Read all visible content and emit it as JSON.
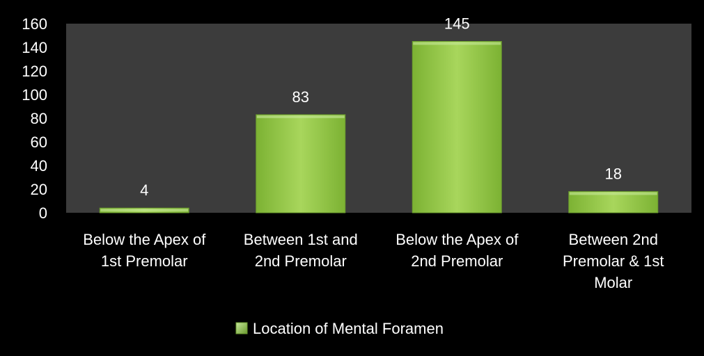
{
  "chart_data": {
    "type": "bar",
    "categories": [
      "Below the Apex of 1st Premolar",
      "Between 1st and 2nd Premolar",
      "Below the Apex of 2nd Premolar",
      "Between 2nd Premolar & 1st Molar"
    ],
    "category_lines": [
      [
        "Below the Apex of",
        "1st Premolar"
      ],
      [
        "Between 1st and",
        "2nd Premolar"
      ],
      [
        "Below the Apex of",
        "2nd Premolar"
      ],
      [
        "Between 2nd",
        "Premolar & 1st",
        "Molar"
      ]
    ],
    "series": [
      {
        "name": "Location of Mental Foramen",
        "values": [
          4,
          83,
          145,
          18
        ]
      }
    ],
    "data_labels": [
      "4",
      "83",
      "145",
      "18"
    ],
    "y_ticks": [
      0,
      20,
      40,
      60,
      80,
      100,
      120,
      140,
      160
    ],
    "ylim": [
      0,
      160
    ],
    "grid": false,
    "legend_position": "bottom",
    "colors": {
      "background": "#000000",
      "plot_area": "#3c3c3c",
      "bar_fill": "#8dc63f",
      "bar_highlight": "#c6e79a",
      "bar_edge": "#6a9a2e",
      "text": "#ffffff"
    }
  }
}
